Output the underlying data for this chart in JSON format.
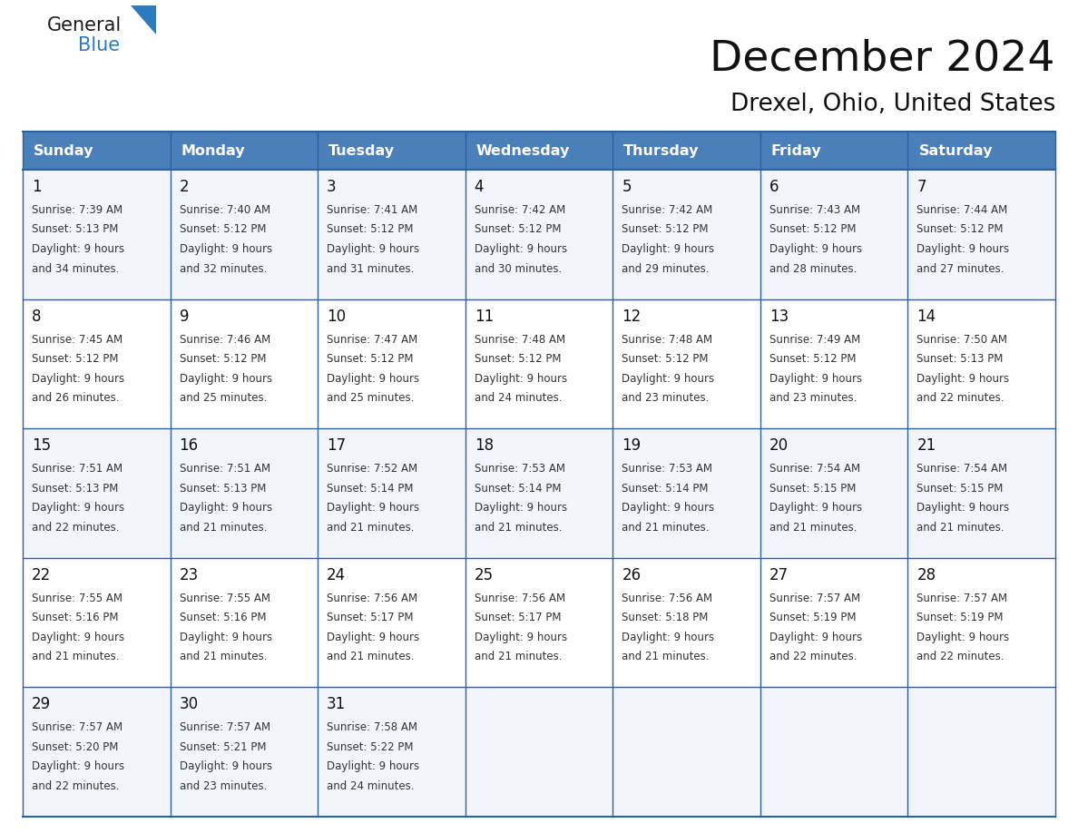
{
  "title": "December 2024",
  "subtitle": "Drexel, Ohio, United States",
  "header_color": "#4a7fba",
  "header_text_color": "#ffffff",
  "cell_bg_even": "#f2f6fb",
  "cell_bg_odd": "#ffffff",
  "border_color": "#2e5f9e",
  "text_color_dark": "#111111",
  "text_color_body": "#333333",
  "logo_text_color": "#1a1a1a",
  "logo_blue_color": "#2d7bbf",
  "day_names": [
    "Sunday",
    "Monday",
    "Tuesday",
    "Wednesday",
    "Thursday",
    "Friday",
    "Saturday"
  ],
  "days": [
    {
      "date": 1,
      "col": 0,
      "row": 0,
      "sunrise": "7:39 AM",
      "sunset": "5:13 PM",
      "daylight_h": "9 hours",
      "daylight_m": "and 34 minutes."
    },
    {
      "date": 2,
      "col": 1,
      "row": 0,
      "sunrise": "7:40 AM",
      "sunset": "5:12 PM",
      "daylight_h": "9 hours",
      "daylight_m": "and 32 minutes."
    },
    {
      "date": 3,
      "col": 2,
      "row": 0,
      "sunrise": "7:41 AM",
      "sunset": "5:12 PM",
      "daylight_h": "9 hours",
      "daylight_m": "and 31 minutes."
    },
    {
      "date": 4,
      "col": 3,
      "row": 0,
      "sunrise": "7:42 AM",
      "sunset": "5:12 PM",
      "daylight_h": "9 hours",
      "daylight_m": "and 30 minutes."
    },
    {
      "date": 5,
      "col": 4,
      "row": 0,
      "sunrise": "7:42 AM",
      "sunset": "5:12 PM",
      "daylight_h": "9 hours",
      "daylight_m": "and 29 minutes."
    },
    {
      "date": 6,
      "col": 5,
      "row": 0,
      "sunrise": "7:43 AM",
      "sunset": "5:12 PM",
      "daylight_h": "9 hours",
      "daylight_m": "and 28 minutes."
    },
    {
      "date": 7,
      "col": 6,
      "row": 0,
      "sunrise": "7:44 AM",
      "sunset": "5:12 PM",
      "daylight_h": "9 hours",
      "daylight_m": "and 27 minutes."
    },
    {
      "date": 8,
      "col": 0,
      "row": 1,
      "sunrise": "7:45 AM",
      "sunset": "5:12 PM",
      "daylight_h": "9 hours",
      "daylight_m": "and 26 minutes."
    },
    {
      "date": 9,
      "col": 1,
      "row": 1,
      "sunrise": "7:46 AM",
      "sunset": "5:12 PM",
      "daylight_h": "9 hours",
      "daylight_m": "and 25 minutes."
    },
    {
      "date": 10,
      "col": 2,
      "row": 1,
      "sunrise": "7:47 AM",
      "sunset": "5:12 PM",
      "daylight_h": "9 hours",
      "daylight_m": "and 25 minutes."
    },
    {
      "date": 11,
      "col": 3,
      "row": 1,
      "sunrise": "7:48 AM",
      "sunset": "5:12 PM",
      "daylight_h": "9 hours",
      "daylight_m": "and 24 minutes."
    },
    {
      "date": 12,
      "col": 4,
      "row": 1,
      "sunrise": "7:48 AM",
      "sunset": "5:12 PM",
      "daylight_h": "9 hours",
      "daylight_m": "and 23 minutes."
    },
    {
      "date": 13,
      "col": 5,
      "row": 1,
      "sunrise": "7:49 AM",
      "sunset": "5:12 PM",
      "daylight_h": "9 hours",
      "daylight_m": "and 23 minutes."
    },
    {
      "date": 14,
      "col": 6,
      "row": 1,
      "sunrise": "7:50 AM",
      "sunset": "5:13 PM",
      "daylight_h": "9 hours",
      "daylight_m": "and 22 minutes."
    },
    {
      "date": 15,
      "col": 0,
      "row": 2,
      "sunrise": "7:51 AM",
      "sunset": "5:13 PM",
      "daylight_h": "9 hours",
      "daylight_m": "and 22 minutes."
    },
    {
      "date": 16,
      "col": 1,
      "row": 2,
      "sunrise": "7:51 AM",
      "sunset": "5:13 PM",
      "daylight_h": "9 hours",
      "daylight_m": "and 21 minutes."
    },
    {
      "date": 17,
      "col": 2,
      "row": 2,
      "sunrise": "7:52 AM",
      "sunset": "5:14 PM",
      "daylight_h": "9 hours",
      "daylight_m": "and 21 minutes."
    },
    {
      "date": 18,
      "col": 3,
      "row": 2,
      "sunrise": "7:53 AM",
      "sunset": "5:14 PM",
      "daylight_h": "9 hours",
      "daylight_m": "and 21 minutes."
    },
    {
      "date": 19,
      "col": 4,
      "row": 2,
      "sunrise": "7:53 AM",
      "sunset": "5:14 PM",
      "daylight_h": "9 hours",
      "daylight_m": "and 21 minutes."
    },
    {
      "date": 20,
      "col": 5,
      "row": 2,
      "sunrise": "7:54 AM",
      "sunset": "5:15 PM",
      "daylight_h": "9 hours",
      "daylight_m": "and 21 minutes."
    },
    {
      "date": 21,
      "col": 6,
      "row": 2,
      "sunrise": "7:54 AM",
      "sunset": "5:15 PM",
      "daylight_h": "9 hours",
      "daylight_m": "and 21 minutes."
    },
    {
      "date": 22,
      "col": 0,
      "row": 3,
      "sunrise": "7:55 AM",
      "sunset": "5:16 PM",
      "daylight_h": "9 hours",
      "daylight_m": "and 21 minutes."
    },
    {
      "date": 23,
      "col": 1,
      "row": 3,
      "sunrise": "7:55 AM",
      "sunset": "5:16 PM",
      "daylight_h": "9 hours",
      "daylight_m": "and 21 minutes."
    },
    {
      "date": 24,
      "col": 2,
      "row": 3,
      "sunrise": "7:56 AM",
      "sunset": "5:17 PM",
      "daylight_h": "9 hours",
      "daylight_m": "and 21 minutes."
    },
    {
      "date": 25,
      "col": 3,
      "row": 3,
      "sunrise": "7:56 AM",
      "sunset": "5:17 PM",
      "daylight_h": "9 hours",
      "daylight_m": "and 21 minutes."
    },
    {
      "date": 26,
      "col": 4,
      "row": 3,
      "sunrise": "7:56 AM",
      "sunset": "5:18 PM",
      "daylight_h": "9 hours",
      "daylight_m": "and 21 minutes."
    },
    {
      "date": 27,
      "col": 5,
      "row": 3,
      "sunrise": "7:57 AM",
      "sunset": "5:19 PM",
      "daylight_h": "9 hours",
      "daylight_m": "and 22 minutes."
    },
    {
      "date": 28,
      "col": 6,
      "row": 3,
      "sunrise": "7:57 AM",
      "sunset": "5:19 PM",
      "daylight_h": "9 hours",
      "daylight_m": "and 22 minutes."
    },
    {
      "date": 29,
      "col": 0,
      "row": 4,
      "sunrise": "7:57 AM",
      "sunset": "5:20 PM",
      "daylight_h": "9 hours",
      "daylight_m": "and 22 minutes."
    },
    {
      "date": 30,
      "col": 1,
      "row": 4,
      "sunrise": "7:57 AM",
      "sunset": "5:21 PM",
      "daylight_h": "9 hours",
      "daylight_m": "and 23 minutes."
    },
    {
      "date": 31,
      "col": 2,
      "row": 4,
      "sunrise": "7:58 AM",
      "sunset": "5:22 PM",
      "daylight_h": "9 hours",
      "daylight_m": "and 24 minutes."
    }
  ]
}
